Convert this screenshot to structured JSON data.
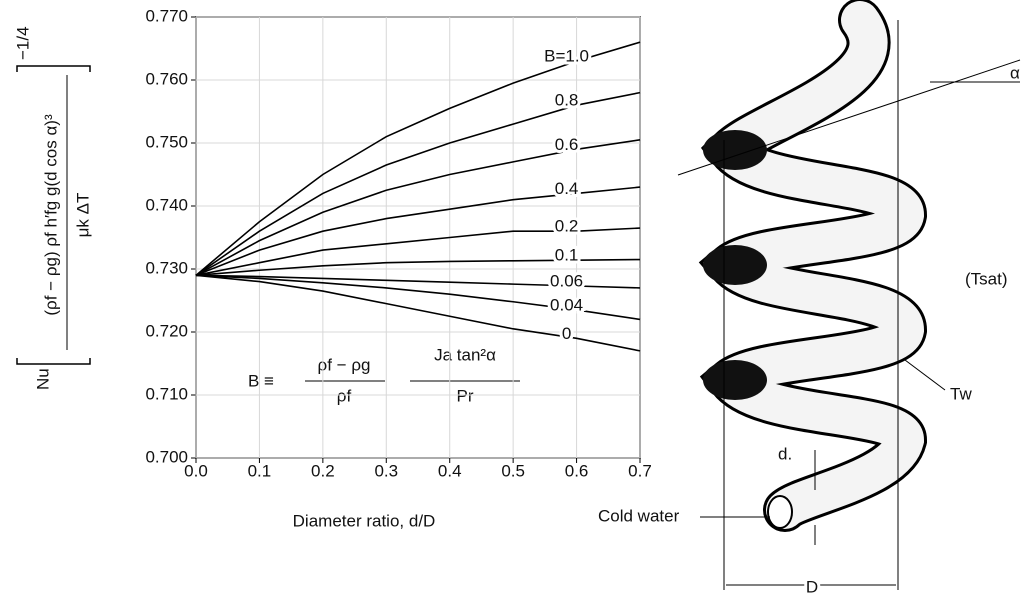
{
  "chart_data": {
    "type": "line",
    "x_label": "Diameter ratio, d/D",
    "y_label": {
      "prefix": "Nu",
      "numerator": "(ρf − ρg) ρf h′fg g(d cos α)³",
      "denominator": "μk ΔT",
      "exponent": "−1/4"
    },
    "annotation": {
      "lhs": "B ≡",
      "frac1_top": "ρf − ρg",
      "frac1_bottom": "ρf",
      "frac2_top": "Ja tan²α",
      "frac2_bottom": "Pr"
    },
    "x": [
      0,
      0.1,
      0.2,
      0.3,
      0.4,
      0.5,
      0.6,
      0.7
    ],
    "series": [
      {
        "name": "B=1.0",
        "color": "#000000",
        "values": [
          0.729,
          0.7375,
          0.745,
          0.751,
          0.7555,
          0.7595,
          0.763,
          0.766
        ]
      },
      {
        "name": "0.8",
        "color": "#000000",
        "values": [
          0.729,
          0.736,
          0.742,
          0.7465,
          0.75,
          0.753,
          0.756,
          0.758
        ]
      },
      {
        "name": "0.6",
        "color": "#000000",
        "values": [
          0.729,
          0.7345,
          0.739,
          0.7425,
          0.745,
          0.747,
          0.749,
          0.7505
        ]
      },
      {
        "name": "0.4",
        "color": "#000000",
        "values": [
          0.729,
          0.733,
          0.736,
          0.738,
          0.7395,
          0.741,
          0.742,
          0.743
        ]
      },
      {
        "name": "0.2",
        "color": "#000000",
        "values": [
          0.729,
          0.731,
          0.733,
          0.734,
          0.735,
          0.736,
          0.736,
          0.7365
        ]
      },
      {
        "name": "0.1",
        "color": "#000000",
        "values": [
          0.729,
          0.7298,
          0.7305,
          0.731,
          0.7312,
          0.7313,
          0.7314,
          0.7315
        ]
      },
      {
        "name": "0.06",
        "color": "#000000",
        "values": [
          0.729,
          0.7288,
          0.7285,
          0.7282,
          0.7279,
          0.7276,
          0.7273,
          0.727
        ]
      },
      {
        "name": "0.04",
        "color": "#000000",
        "values": [
          0.729,
          0.7285,
          0.7278,
          0.727,
          0.726,
          0.7248,
          0.7235,
          0.722
        ]
      },
      {
        "name": "0",
        "color": "#000000",
        "values": [
          0.729,
          0.728,
          0.7265,
          0.7245,
          0.7225,
          0.7205,
          0.719,
          0.717
        ]
      }
    ],
    "xlim": [
      0,
      0.7
    ],
    "ylim": [
      0.7,
      0.77
    ],
    "xticks": [
      {
        "value": 0,
        "label": "0.0"
      },
      0.1,
      0.2,
      0.3,
      0.4,
      0.5,
      0.6,
      0.7
    ],
    "yticks": [
      {
        "value": 0.7,
        "label": "0.700"
      },
      {
        "value": 0.71,
        "label": "0.710"
      },
      {
        "value": 0.72,
        "label": "0.720"
      },
      {
        "value": 0.73,
        "label": "0.730"
      },
      {
        "value": 0.74,
        "label": "0.740"
      },
      {
        "value": 0.75,
        "label": "0.750"
      },
      {
        "value": 0.76,
        "label": "0.760"
      },
      {
        "value": 0.77,
        "label": "0.770"
      }
    ],
    "grid": true
  },
  "diagram": {
    "t_sat": "(Tsat)",
    "t_w": "Tw",
    "d_small": "d.",
    "cold_water": "Cold water",
    "d_big": "D",
    "angle": "α"
  }
}
